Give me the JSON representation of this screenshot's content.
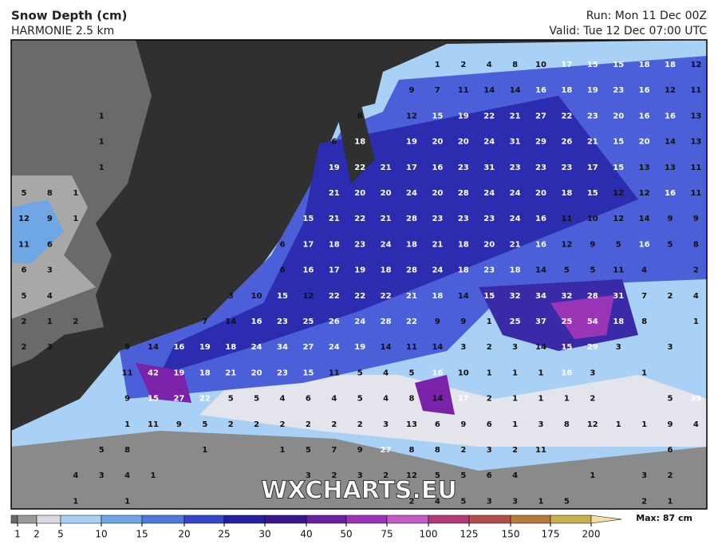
{
  "header": {
    "title": "Snow Depth (cm)",
    "subtitle": "HARMONIE 2.5 km",
    "run": "Run: Mon 11 Dec 00Z",
    "valid": "Valid: Tue 12 Dec 07:00 UTC"
  },
  "watermark": "WXCHARTS.EU",
  "map_labels": [
    [
      null,
      null,
      null,
      null,
      null,
      null,
      null,
      null,
      null,
      null,
      null,
      null,
      null,
      null,
      null,
      null,
      1,
      2,
      4,
      8,
      10,
      17,
      15,
      15,
      18,
      18,
      12
    ],
    [
      null,
      null,
      null,
      null,
      null,
      null,
      null,
      null,
      null,
      null,
      null,
      null,
      null,
      null,
      null,
      9,
      7,
      11,
      14,
      14,
      16,
      18,
      19,
      23,
      16,
      12,
      11
    ],
    [
      null,
      null,
      null,
      1,
      null,
      null,
      null,
      null,
      null,
      null,
      null,
      null,
      null,
      6,
      null,
      12,
      15,
      19,
      22,
      21,
      27,
      22,
      23,
      20,
      16,
      16,
      13
    ],
    [
      null,
      null,
      null,
      1,
      null,
      null,
      null,
      null,
      null,
      null,
      null,
      null,
      6,
      18,
      null,
      19,
      20,
      20,
      24,
      31,
      29,
      26,
      21,
      15,
      20,
      14,
      13
    ],
    [
      null,
      null,
      null,
      1,
      null,
      null,
      null,
      null,
      null,
      null,
      null,
      null,
      19,
      22,
      21,
      17,
      16,
      23,
      31,
      23,
      23,
      23,
      17,
      15,
      13,
      13,
      11
    ],
    [
      5,
      8,
      1,
      null,
      null,
      null,
      null,
      null,
      null,
      null,
      null,
      null,
      21,
      20,
      20,
      24,
      20,
      28,
      24,
      24,
      20,
      18,
      15,
      12,
      12,
      16,
      11
    ],
    [
      12,
      9,
      1,
      null,
      null,
      null,
      null,
      null,
      null,
      null,
      null,
      15,
      21,
      22,
      21,
      28,
      23,
      23,
      23,
      24,
      16,
      11,
      10,
      12,
      14,
      9,
      9
    ],
    [
      11,
      6,
      null,
      null,
      null,
      null,
      null,
      null,
      null,
      null,
      6,
      17,
      18,
      23,
      24,
      18,
      21,
      18,
      20,
      21,
      16,
      12,
      9,
      5,
      16,
      5,
      8
    ],
    [
      6,
      3,
      null,
      null,
      null,
      null,
      null,
      null,
      null,
      null,
      6,
      16,
      17,
      19,
      18,
      28,
      24,
      18,
      23,
      18,
      14,
      5,
      5,
      11,
      4,
      null,
      2
    ],
    [
      5,
      4,
      null,
      null,
      null,
      null,
      null,
      null,
      3,
      10,
      15,
      12,
      22,
      22,
      22,
      21,
      18,
      14,
      15,
      32,
      34,
      32,
      28,
      31,
      7,
      2,
      4
    ],
    [
      2,
      1,
      2,
      null,
      null,
      null,
      null,
      7,
      14,
      16,
      23,
      25,
      26,
      24,
      28,
      22,
      9,
      9,
      1,
      25,
      37,
      25,
      54,
      18,
      8,
      null,
      1
    ],
    [
      2,
      3,
      null,
      null,
      9,
      14,
      16,
      19,
      18,
      24,
      34,
      27,
      24,
      19,
      14,
      11,
      14,
      3,
      2,
      3,
      14,
      15,
      29,
      3,
      null,
      3,
      null
    ],
    [
      null,
      null,
      null,
      null,
      11,
      42,
      19,
      18,
      21,
      20,
      23,
      15,
      11,
      5,
      4,
      5,
      16,
      10,
      1,
      1,
      1,
      16,
      3,
      null,
      1,
      null,
      null
    ],
    [
      null,
      null,
      null,
      null,
      9,
      15,
      27,
      22,
      5,
      5,
      4,
      6,
      4,
      5,
      4,
      8,
      14,
      17,
      2,
      1,
      1,
      1,
      2,
      null,
      null,
      5,
      39
    ],
    [
      null,
      null,
      null,
      null,
      1,
      11,
      9,
      5,
      2,
      2,
      2,
      2,
      2,
      2,
      3,
      13,
      6,
      9,
      6,
      1,
      3,
      8,
      12,
      1,
      1,
      9,
      4
    ],
    [
      null,
      null,
      null,
      5,
      8,
      null,
      null,
      1,
      null,
      null,
      1,
      5,
      7,
      9,
      27,
      8,
      8,
      2,
      3,
      2,
      11,
      null,
      null,
      null,
      null,
      6,
      null
    ],
    [
      null,
      null,
      4,
      3,
      4,
      1,
      null,
      null,
      null,
      null,
      null,
      3,
      2,
      3,
      2,
      12,
      5,
      5,
      6,
      4,
      null,
      null,
      1,
      null,
      3,
      2,
      null
    ],
    [
      null,
      null,
      1,
      null,
      1,
      null,
      null,
      null,
      null,
      null,
      null,
      null,
      null,
      null,
      null,
      2,
      4,
      5,
      3,
      3,
      1,
      5,
      null,
      null,
      2,
      1,
      null
    ]
  ],
  "colorbar": {
    "labels": [
      1,
      2,
      5,
      10,
      15,
      20,
      25,
      30,
      40,
      50,
      75,
      100,
      125,
      150,
      175,
      200
    ],
    "colors": [
      "#9a9a9a",
      "#d8d8e0",
      "#a9d0f5",
      "#6fa6e6",
      "#4b7bdb",
      "#3346c8",
      "#24209f",
      "#3c178c",
      "#6a1fa0",
      "#9a35b8",
      "#c45cc8",
      "#b23a78",
      "#b0504e",
      "#b87a3c",
      "#c8b050"
    ],
    "max": "Max: 87 cm"
  }
}
